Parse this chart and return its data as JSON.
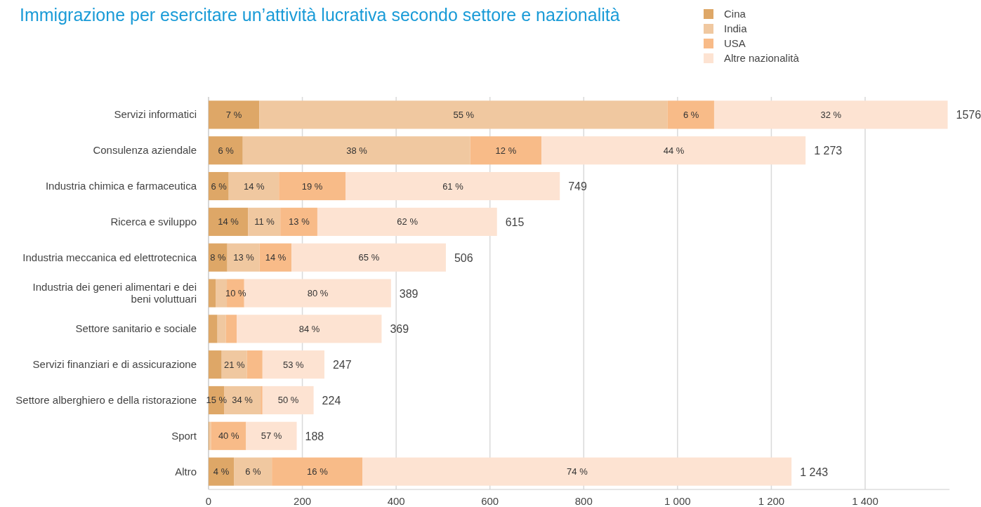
{
  "chart_data": {
    "type": "bar",
    "orientation": "horizontal",
    "stacked": true,
    "title": "Immigrazione per esercitare un’attività lucrativa secondo settore e nazionalità",
    "categories": [
      "Servizi informatici",
      "Consulenza aziendale",
      "Industria chimica e farmaceutica",
      "Ricerca e sviluppo",
      "Industria meccanica ed elettrotecnica",
      "Industria dei generi alimentari e dei beni voluttuari",
      "Settore sanitario e sociale",
      "Servizi finanziari e di assicurazione",
      "Settore alberghiero e della ristorazione",
      "Sport",
      "Altro"
    ],
    "series": [
      {
        "name": "Cina",
        "color": "#dea767",
        "values": [
          108,
          73,
          43,
          84,
          40,
          15,
          19,
          28,
          33,
          2,
          54
        ]
      },
      {
        "name": "India",
        "color": "#f0c8a0",
        "values": [
          871,
          485,
          107,
          69,
          69,
          24,
          18,
          54,
          78,
          3,
          81
        ]
      },
      {
        "name": "USA",
        "color": "#f8bb88",
        "values": [
          99,
          152,
          142,
          79,
          68,
          37,
          23,
          33,
          4,
          75,
          193
        ]
      },
      {
        "name": "Altre nazionalità",
        "color": "#fde3d2",
        "values": [
          498,
          563,
          457,
          383,
          329,
          313,
          309,
          132,
          109,
          108,
          915
        ]
      }
    ],
    "totals": [
      "1576",
      "1 273",
      "749",
      "615",
      "506",
      "389",
      "369",
      "247",
      "224",
      "188",
      "1 243"
    ],
    "annotations": [
      {
        "text": "7 %",
        "x": 54,
        "y": "Servizi informatici"
      },
      {
        "text": "55 %",
        "x": 544,
        "y": "Servizi informatici"
      },
      {
        "text": "6 %",
        "x": 1029,
        "y": "Servizi informatici"
      },
      {
        "text": "32 %",
        "x": 1327,
        "y": "Servizi informatici"
      },
      {
        "text": "6 %",
        "x": 37,
        "y": "Consulenza aziendale"
      },
      {
        "text": "38 %",
        "x": 316,
        "y": "Consulenza aziendale"
      },
      {
        "text": "12 %",
        "x": 634,
        "y": "Consulenza aziendale"
      },
      {
        "text": "44 %",
        "x": 992,
        "y": "Consulenza aziendale"
      },
      {
        "text": "6 %",
        "x": 22,
        "y": "Industria chimica e farmaceutica"
      },
      {
        "text": "14 %",
        "x": 97,
        "y": "Industria chimica e farmaceutica"
      },
      {
        "text": "19 %",
        "x": 221,
        "y": "Industria chimica e farmaceutica"
      },
      {
        "text": "61 %",
        "x": 521,
        "y": "Industria chimica e farmaceutica"
      },
      {
        "text": "14 %",
        "x": 42,
        "y": "Ricerca e sviluppo"
      },
      {
        "text": "11 %",
        "x": 119,
        "y": "Ricerca e sviluppo"
      },
      {
        "text": "13 %",
        "x": 193,
        "y": "Ricerca e sviluppo"
      },
      {
        "text": "62 %",
        "x": 424,
        "y": "Ricerca e sviluppo"
      },
      {
        "text": "8 %",
        "x": 20,
        "y": "Industria meccanica ed elettrotecnica"
      },
      {
        "text": "13 %",
        "x": 75,
        "y": "Industria meccanica ed elettrotecnica"
      },
      {
        "text": "14 %",
        "x": 143,
        "y": "Industria meccanica ed elettrotecnica"
      },
      {
        "text": "65 %",
        "x": 342,
        "y": "Industria meccanica ed elettrotecnica"
      },
      {
        "text": "10 %",
        "x": 58,
        "y": "Industria dei generi alimentari e dei beni voluttuari"
      },
      {
        "text": "80 %",
        "x": 233,
        "y": "Industria dei generi alimentari e dei beni voluttuari"
      },
      {
        "text": "84 %",
        "x": 215,
        "y": "Settore sanitario e sociale"
      },
      {
        "text": "21 %",
        "x": 55,
        "y": "Servizi finanziari e di assicurazione"
      },
      {
        "text": "53 %",
        "x": 181,
        "y": "Servizi finanziari e di assicurazione"
      },
      {
        "text": "15 %",
        "x": 17,
        "y": "Settore alberghiero e della ristorazione"
      },
      {
        "text": "34 %",
        "x": 72,
        "y": "Settore alberghiero e della ristorazione"
      },
      {
        "text": "50 %",
        "x": 170,
        "y": "Settore alberghiero e della ristorazione"
      },
      {
        "text": "40 %",
        "x": 43,
        "y": "Sport"
      },
      {
        "text": "57 %",
        "x": 134,
        "y": "Sport"
      },
      {
        "text": "4 %",
        "x": 27,
        "y": "Altro"
      },
      {
        "text": "6 %",
        "x": 95,
        "y": "Altro"
      },
      {
        "text": "16 %",
        "x": 232,
        "y": "Altro"
      },
      {
        "text": "74 %",
        "x": 786,
        "y": "Altro"
      }
    ],
    "xlim": [
      0,
      1580
    ],
    "xticks": [
      0,
      200,
      400,
      600,
      800,
      {
        "value": 1000,
        "label": "1 000"
      },
      {
        "value": 1200,
        "label": "1 200"
      },
      {
        "value": 1400,
        "label": "1 400"
      }
    ],
    "grid": "x",
    "legend": "top right"
  }
}
